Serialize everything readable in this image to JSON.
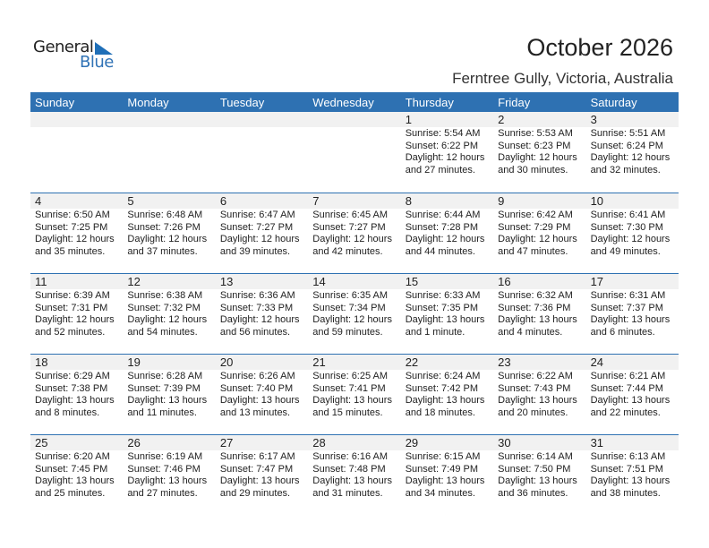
{
  "logo": {
    "line1": "General",
    "line2": "Blue"
  },
  "title": "October 2026",
  "location": "Ferntree Gully, Victoria, Australia",
  "weekdays": [
    "Sunday",
    "Monday",
    "Tuesday",
    "Wednesday",
    "Thursday",
    "Friday",
    "Saturday"
  ],
  "weeks": [
    [
      null,
      null,
      null,
      null,
      {
        "day": "1",
        "sunrise": "Sunrise: 5:54 AM",
        "sunset": "Sunset: 6:22 PM",
        "daylight1": "Daylight: 12 hours",
        "daylight2": "and 27 minutes."
      },
      {
        "day": "2",
        "sunrise": "Sunrise: 5:53 AM",
        "sunset": "Sunset: 6:23 PM",
        "daylight1": "Daylight: 12 hours",
        "daylight2": "and 30 minutes."
      },
      {
        "day": "3",
        "sunrise": "Sunrise: 5:51 AM",
        "sunset": "Sunset: 6:24 PM",
        "daylight1": "Daylight: 12 hours",
        "daylight2": "and 32 minutes."
      }
    ],
    [
      {
        "day": "4",
        "sunrise": "Sunrise: 6:50 AM",
        "sunset": "Sunset: 7:25 PM",
        "daylight1": "Daylight: 12 hours",
        "daylight2": "and 35 minutes."
      },
      {
        "day": "5",
        "sunrise": "Sunrise: 6:48 AM",
        "sunset": "Sunset: 7:26 PM",
        "daylight1": "Daylight: 12 hours",
        "daylight2": "and 37 minutes."
      },
      {
        "day": "6",
        "sunrise": "Sunrise: 6:47 AM",
        "sunset": "Sunset: 7:27 PM",
        "daylight1": "Daylight: 12 hours",
        "daylight2": "and 39 minutes."
      },
      {
        "day": "7",
        "sunrise": "Sunrise: 6:45 AM",
        "sunset": "Sunset: 7:27 PM",
        "daylight1": "Daylight: 12 hours",
        "daylight2": "and 42 minutes."
      },
      {
        "day": "8",
        "sunrise": "Sunrise: 6:44 AM",
        "sunset": "Sunset: 7:28 PM",
        "daylight1": "Daylight: 12 hours",
        "daylight2": "and 44 minutes."
      },
      {
        "day": "9",
        "sunrise": "Sunrise: 6:42 AM",
        "sunset": "Sunset: 7:29 PM",
        "daylight1": "Daylight: 12 hours",
        "daylight2": "and 47 minutes."
      },
      {
        "day": "10",
        "sunrise": "Sunrise: 6:41 AM",
        "sunset": "Sunset: 7:30 PM",
        "daylight1": "Daylight: 12 hours",
        "daylight2": "and 49 minutes."
      }
    ],
    [
      {
        "day": "11",
        "sunrise": "Sunrise: 6:39 AM",
        "sunset": "Sunset: 7:31 PM",
        "daylight1": "Daylight: 12 hours",
        "daylight2": "and 52 minutes."
      },
      {
        "day": "12",
        "sunrise": "Sunrise: 6:38 AM",
        "sunset": "Sunset: 7:32 PM",
        "daylight1": "Daylight: 12 hours",
        "daylight2": "and 54 minutes."
      },
      {
        "day": "13",
        "sunrise": "Sunrise: 6:36 AM",
        "sunset": "Sunset: 7:33 PM",
        "daylight1": "Daylight: 12 hours",
        "daylight2": "and 56 minutes."
      },
      {
        "day": "14",
        "sunrise": "Sunrise: 6:35 AM",
        "sunset": "Sunset: 7:34 PM",
        "daylight1": "Daylight: 12 hours",
        "daylight2": "and 59 minutes."
      },
      {
        "day": "15",
        "sunrise": "Sunrise: 6:33 AM",
        "sunset": "Sunset: 7:35 PM",
        "daylight1": "Daylight: 13 hours",
        "daylight2": "and 1 minute."
      },
      {
        "day": "16",
        "sunrise": "Sunrise: 6:32 AM",
        "sunset": "Sunset: 7:36 PM",
        "daylight1": "Daylight: 13 hours",
        "daylight2": "and 4 minutes."
      },
      {
        "day": "17",
        "sunrise": "Sunrise: 6:31 AM",
        "sunset": "Sunset: 7:37 PM",
        "daylight1": "Daylight: 13 hours",
        "daylight2": "and 6 minutes."
      }
    ],
    [
      {
        "day": "18",
        "sunrise": "Sunrise: 6:29 AM",
        "sunset": "Sunset: 7:38 PM",
        "daylight1": "Daylight: 13 hours",
        "daylight2": "and 8 minutes."
      },
      {
        "day": "19",
        "sunrise": "Sunrise: 6:28 AM",
        "sunset": "Sunset: 7:39 PM",
        "daylight1": "Daylight: 13 hours",
        "daylight2": "and 11 minutes."
      },
      {
        "day": "20",
        "sunrise": "Sunrise: 6:26 AM",
        "sunset": "Sunset: 7:40 PM",
        "daylight1": "Daylight: 13 hours",
        "daylight2": "and 13 minutes."
      },
      {
        "day": "21",
        "sunrise": "Sunrise: 6:25 AM",
        "sunset": "Sunset: 7:41 PM",
        "daylight1": "Daylight: 13 hours",
        "daylight2": "and 15 minutes."
      },
      {
        "day": "22",
        "sunrise": "Sunrise: 6:24 AM",
        "sunset": "Sunset: 7:42 PM",
        "daylight1": "Daylight: 13 hours",
        "daylight2": "and 18 minutes."
      },
      {
        "day": "23",
        "sunrise": "Sunrise: 6:22 AM",
        "sunset": "Sunset: 7:43 PM",
        "daylight1": "Daylight: 13 hours",
        "daylight2": "and 20 minutes."
      },
      {
        "day": "24",
        "sunrise": "Sunrise: 6:21 AM",
        "sunset": "Sunset: 7:44 PM",
        "daylight1": "Daylight: 13 hours",
        "daylight2": "and 22 minutes."
      }
    ],
    [
      {
        "day": "25",
        "sunrise": "Sunrise: 6:20 AM",
        "sunset": "Sunset: 7:45 PM",
        "daylight1": "Daylight: 13 hours",
        "daylight2": "and 25 minutes."
      },
      {
        "day": "26",
        "sunrise": "Sunrise: 6:19 AM",
        "sunset": "Sunset: 7:46 PM",
        "daylight1": "Daylight: 13 hours",
        "daylight2": "and 27 minutes."
      },
      {
        "day": "27",
        "sunrise": "Sunrise: 6:17 AM",
        "sunset": "Sunset: 7:47 PM",
        "daylight1": "Daylight: 13 hours",
        "daylight2": "and 29 minutes."
      },
      {
        "day": "28",
        "sunrise": "Sunrise: 6:16 AM",
        "sunset": "Sunset: 7:48 PM",
        "daylight1": "Daylight: 13 hours",
        "daylight2": "and 31 minutes."
      },
      {
        "day": "29",
        "sunrise": "Sunrise: 6:15 AM",
        "sunset": "Sunset: 7:49 PM",
        "daylight1": "Daylight: 13 hours",
        "daylight2": "and 34 minutes."
      },
      {
        "day": "30",
        "sunrise": "Sunrise: 6:14 AM",
        "sunset": "Sunset: 7:50 PM",
        "daylight1": "Daylight: 13 hours",
        "daylight2": "and 36 minutes."
      },
      {
        "day": "31",
        "sunrise": "Sunrise: 6:13 AM",
        "sunset": "Sunset: 7:51 PM",
        "daylight1": "Daylight: 13 hours",
        "daylight2": "and 38 minutes."
      }
    ]
  ]
}
